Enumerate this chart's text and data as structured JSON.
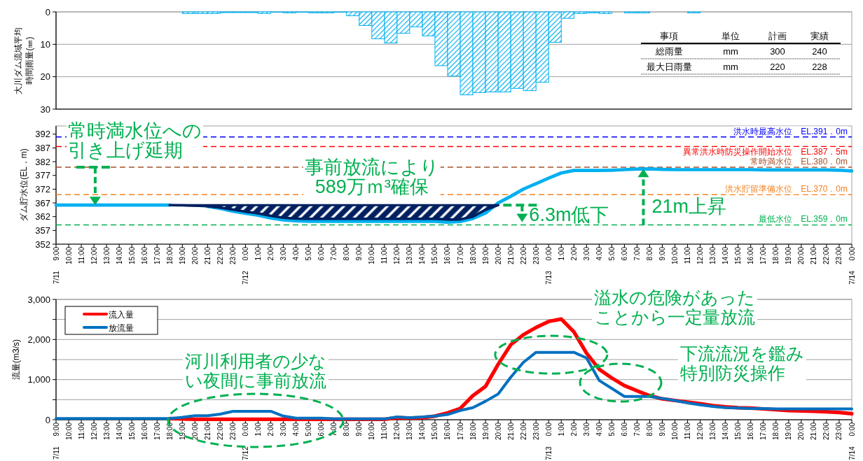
{
  "chart_data": [
    {
      "type": "bar",
      "ylabel": "大川ダム流域平均時間雨量(㎜)",
      "color": "#00b0f0",
      "ylim": [
        30,
        0
      ],
      "yticks": [
        0,
        10,
        20,
        30
      ],
      "grid": "y",
      "categories": [
        null,
        null,
        null,
        null,
        null,
        null,
        null,
        null,
        null,
        null,
        null,
        null,
        null,
        null,
        null,
        null,
        null,
        null,
        null,
        null,
        null,
        null,
        null,
        null,
        null,
        null,
        null,
        null,
        null,
        null,
        null,
        null,
        null,
        null,
        null,
        null,
        null,
        null,
        null,
        null,
        null,
        null,
        null,
        null,
        null,
        null,
        null,
        null,
        null,
        null,
        null,
        null,
        null,
        null,
        null,
        null,
        null,
        null,
        null,
        null,
        null,
        null,
        null
      ],
      "values": [
        0,
        0,
        0,
        0,
        0,
        0,
        0,
        0,
        0,
        0,
        0.5,
        0.5,
        0.5,
        0.2,
        0.2,
        0.2,
        0.5,
        0.1,
        0.3,
        0.1,
        0.3,
        0.3,
        0.1,
        1.2,
        4.2,
        8.3,
        9.6,
        6.6,
        4.6,
        7.4,
        16.6,
        19.8,
        25.6,
        24.9,
        24.7,
        24.7,
        23.6,
        24.3,
        21.7,
        9.4,
        2.0,
        0.5,
        0.3,
        0.5,
        0,
        0.3,
        0.3,
        0,
        0,
        0,
        0.3,
        0,
        0,
        0,
        0,
        0,
        0,
        0,
        0,
        0,
        0,
        0,
        0
      ]
    },
    {
      "type": "other",
      "annotations": [
        "事項",
        "単位",
        "計画",
        "実績",
        "総雨量",
        "mm",
        "300",
        "240",
        "最大日雨量",
        "mm",
        "220",
        "228"
      ]
    },
    {
      "type": "line",
      "ylabel": "ダム貯水位(EL．m)",
      "ylim": [
        352,
        395
      ],
      "yticks": [
        352,
        357,
        362,
        367,
        372,
        377,
        382,
        387,
        392
      ],
      "categories": [
        "7/11 9:00",
        "10:00",
        "11:00",
        "12:00",
        "13:00",
        "14:00",
        "15:00",
        "16:00",
        "17:00",
        "18:00",
        "19:00",
        "20:00",
        "21:00",
        "22:00",
        "23:00",
        "7/12 0:00",
        "1:00",
        "2:00",
        "3:00",
        "4:00",
        "5:00",
        "6:00",
        "7:00",
        "8:00",
        "9:00",
        "10:00",
        "11:00",
        "12:00",
        "13:00",
        "14:00",
        "15:00",
        "16:00",
        "17:00",
        "18:00",
        "19:00",
        "20:00",
        "21:00",
        "22:00",
        "23:00",
        "7/13 0:00",
        "1:00",
        "2:00",
        "3:00",
        "4:00",
        "5:00",
        "6:00",
        "7:00",
        "8:00",
        "9:00",
        "10:00",
        "11:00",
        "12:00",
        "13:00",
        "14:00",
        "15:00",
        "16:00",
        "17:00",
        "18:00",
        "19:00",
        "20:00",
        "21:00",
        "22:00",
        "23:00",
        "7/14 0:00"
      ],
      "series": [
        {
          "type": "line",
          "color": "#00b0f0",
          "values": [
            366.2,
            366.2,
            366.2,
            366.2,
            366.2,
            366.2,
            366.2,
            366.2,
            366.2,
            366.2,
            null,
            null,
            365.7,
            365.0,
            364.0,
            363.2,
            362.5,
            361.5,
            360.8,
            360.5,
            360.3,
            360.3,
            360.3,
            360.3,
            360.3,
            360.3,
            360.3,
            360.3,
            360.3,
            360.3,
            360.3,
            360.0,
            360.2,
            361.3,
            363.3,
            367.0,
            369.4,
            372.0,
            374.0,
            376.0,
            377.9,
            378.8,
            378.8,
            378.8,
            378.9,
            379.1,
            379.3,
            379.4,
            379.2,
            379.1,
            379.1,
            379.1,
            379.1,
            379.1,
            379.1,
            379.1,
            379.0,
            379.0,
            379.0,
            379.0,
            379.0,
            379.0,
            378.9,
            378.6
          ]
        },
        {
          "type": "line",
          "color": "#002060",
          "values": [
            null,
            null,
            null,
            null,
            null,
            null,
            null,
            null,
            null,
            366.2,
            366.1,
            366.0,
            365.8,
            365.3,
            364.6,
            363.8,
            363.2,
            362.3,
            361.6,
            361.3,
            361.2,
            361.2,
            361.2,
            361.2,
            361.2,
            361.2,
            361.2,
            361.2,
            361.2,
            361.2,
            361.2,
            361.0,
            361.0,
            362.0,
            364.5,
            366.2,
            null,
            null,
            null,
            null,
            null,
            null,
            null,
            null,
            null,
            null,
            null,
            null,
            null,
            null,
            null,
            null,
            null,
            null,
            null,
            null,
            null,
            null,
            null,
            null,
            null,
            null,
            null,
            null
          ],
          "lower": [
            null,
            null,
            null,
            null,
            null,
            null,
            null,
            null,
            null,
            366.2,
            366.1,
            366.0,
            365.8,
            365.3,
            364.6,
            363.8,
            363.2,
            362.3,
            361.6,
            361.3,
            361.2,
            361.2,
            361.2,
            361.2,
            361.2,
            361.2,
            361.2,
            361.2,
            361.2,
            361.2,
            361.2,
            361.0,
            361.0,
            362.0,
            364.5,
            366.2,
            null,
            null,
            null,
            null,
            null,
            null,
            null,
            null,
            null,
            null,
            null,
            null,
            null,
            null,
            null,
            null,
            null,
            null,
            null,
            null,
            null,
            null,
            null,
            null,
            null,
            null,
            null,
            null
          ],
          "upper": [
            null,
            null,
            null,
            null,
            null,
            null,
            null,
            null,
            null,
            366.2,
            366.2,
            366.2,
            366.2,
            366.2,
            366.2,
            366.2,
            366.2,
            366.2,
            366.2,
            366.2,
            366.2,
            366.2,
            366.2,
            366.2,
            366.2,
            366.2,
            366.2,
            366.2,
            366.2,
            366.2,
            366.2,
            366.2,
            366.2,
            366.2,
            366.2,
            366.2,
            null,
            null,
            null,
            null,
            null,
            null,
            null,
            null,
            null,
            null,
            null,
            null,
            null,
            null,
            null,
            null,
            null,
            null,
            null,
            null,
            null,
            null,
            null,
            null,
            null,
            null,
            null,
            null
          ]
        }
      ],
      "ref_lines": [
        {
          "axis": "y",
          "value": 391.0,
          "label": "洪水時最高水位　EL.391．0m",
          "color": "#0000ff",
          "line_style": "dashed"
        },
        {
          "axis": "y",
          "value": 387.5,
          "label": "異常洪水時防災操作開始水位　EL.387．5m",
          "color": "#ff0000",
          "line_style": "dashed"
        },
        {
          "axis": "y",
          "value": 380.0,
          "label": "常時満水位　EL.380．0m",
          "color": "#a5522a",
          "line_style": "dashed"
        },
        {
          "axis": "y",
          "value": 370.0,
          "label": "洪水貯留準備水位　EL.370．0m",
          "color": "#f58220",
          "line_style": "dashed"
        },
        {
          "axis": "y",
          "value": 359.0,
          "label": "最低水位　EL.359．0m",
          "color": "#00b050",
          "line_style": "dashed"
        }
      ],
      "annotations": [
        {
          "text": "常時満水位への引き上げ延期",
          "y": 366.2
        },
        "事前放流により589万ｍ³確保",
        {
          "text": "6.3m低下",
          "y": 360.0
        },
        {
          "text": "21m上昇",
          "y": 379.4
        }
      ]
    },
    {
      "type": "line",
      "ylabel": "流量(m3/s)",
      "ylim": [
        0,
        3000
      ],
      "yticks": [
        {
          "value": 0,
          "label": "0"
        },
        {
          "value": 500,
          "label": null
        },
        {
          "value": 1000,
          "label": "1,000"
        },
        {
          "value": 1500,
          "label": null
        },
        {
          "value": 2000,
          "label": "2,000"
        },
        {
          "value": 2500,
          "label": null
        },
        {
          "value": 3000,
          "label": "3,000"
        }
      ],
      "categories": [
        "7/11 9:00",
        "10:00",
        "11:00",
        "12:00",
        "13:00",
        "14:00",
        "15:00",
        "16:00",
        "17:00",
        "18:00",
        "19:00",
        "20:00",
        "21:00",
        "22:00",
        "23:00",
        "7/12 0:00",
        "1:00",
        "2:00",
        "3:00",
        "4:00",
        "5:00",
        "6:00",
        "7:00",
        "8:00",
        "9:00",
        "10:00",
        "11:00",
        "12:00",
        "13:00",
        "14:00",
        "15:00",
        "16:00",
        "17:00",
        "18:00",
        "19:00",
        "20:00",
        "21:00",
        "22:00",
        "23:00",
        "7/13 0:00",
        "1:00",
        "2:00",
        "3:00",
        "4:00",
        "5:00",
        "6:00",
        "7:00",
        "8:00",
        "9:00",
        "10:00",
        "11:00",
        "12:00",
        "13:00",
        "14:00",
        "15:00",
        "16:00",
        "17:00",
        "18:00",
        "19:00",
        "20:00",
        "21:00",
        "22:00",
        "23:00",
        "7/14 0:00"
      ],
      "grid": "y",
      "legend": "top left",
      "series": [
        {
          "name": "流入量",
          "color": "#ff0000",
          "values": [
            null,
            null,
            null,
            null,
            null,
            null,
            null,
            null,
            null,
            30,
            20,
            10,
            10,
            10,
            10,
            10,
            10,
            10,
            10,
            10,
            10,
            10,
            10,
            10,
            10,
            10,
            10,
            50,
            40,
            50,
            90,
            170,
            280,
            600,
            830,
            1380,
            1870,
            2120,
            2300,
            2450,
            2510,
            2190,
            1660,
            1260,
            1040,
            850,
            720,
            600,
            520,
            480,
            440,
            400,
            350,
            320,
            300,
            290,
            270,
            250,
            230,
            220,
            210,
            200,
            180,
            150
          ]
        },
        {
          "name": "放流量",
          "color": "#0070c0",
          "values": [
            30,
            30,
            30,
            30,
            30,
            30,
            30,
            30,
            30,
            30,
            60,
            100,
            100,
            140,
            210,
            210,
            210,
            210,
            90,
            40,
            40,
            40,
            20,
            20,
            20,
            20,
            20,
            70,
            50,
            70,
            90,
            130,
            230,
            300,
            460,
            640,
            1060,
            1430,
            1680,
            1680,
            1680,
            1680,
            1540,
            980,
            780,
            580,
            580,
            580,
            530,
            480,
            420,
            370,
            330,
            300,
            290,
            280,
            280,
            270,
            270,
            270,
            270,
            270,
            270,
            270
          ]
        }
      ],
      "annotations": [
        "河川利用者の少ない夜間に事前放流",
        "溢水の危険があったことから一定量放流",
        "下流流況を鑑み特別防災操作"
      ]
    }
  ]
}
